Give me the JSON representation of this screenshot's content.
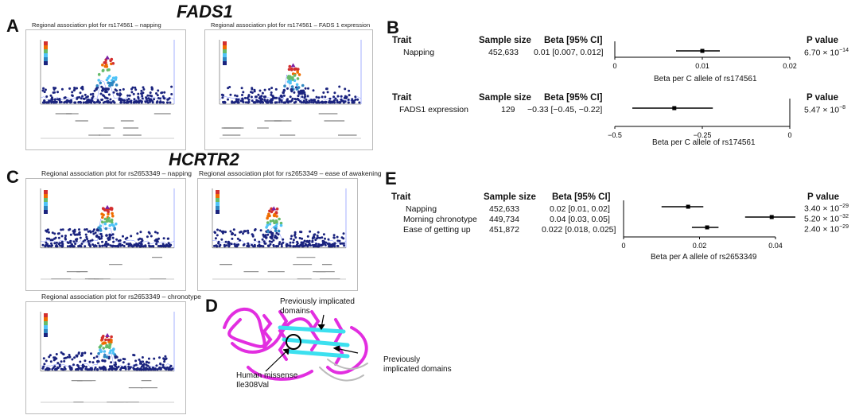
{
  "panels": {
    "A": {
      "letter": "A",
      "gene": "FADS1",
      "plots": [
        {
          "title": "Regional association plot for rs174561 – napping",
          "snp": "rs174561"
        },
        {
          "title": "Regional association plot for rs174561 – FADS 1 expression",
          "snp": "rs174561"
        }
      ]
    },
    "B": {
      "letter": "B",
      "header": {
        "trait": "Trait",
        "sample": "Sample size",
        "beta": "Beta [95% CI]",
        "p": "P value"
      },
      "blocks": [
        {
          "trait": "Napping",
          "sample": "452,633",
          "beta": "0.01 [0.007, 0.012]",
          "p_base": "6.70 × 10",
          "p_exp": "−14",
          "xlabel": "Beta per C allele of rs174561",
          "ticks": [
            "0",
            "0.01",
            "0.02"
          ]
        },
        {
          "trait": "FADS1 expression",
          "sample": "129",
          "beta": "−0.33 [−0.45, −0.22]",
          "p_base": "5.47 × 10",
          "p_exp": "−8",
          "xlabel": "Beta per C allele of rs174561",
          "ticks": [
            "−0.5",
            "−0.25",
            "0"
          ]
        }
      ]
    },
    "C": {
      "letter": "C",
      "gene": "HCRTR2",
      "plots": [
        {
          "title": "Regional association plot for rs2653349 – napping",
          "snp": "rs2653349"
        },
        {
          "title": "Regional association plot for rs2653349 – ease of awakening",
          "snp": "rs2653349"
        },
        {
          "title": "Regional association plot for rs2653349 – chronotype",
          "snp": "rs2653349"
        }
      ]
    },
    "D": {
      "letter": "D",
      "labels": {
        "top": "Previously implicated\ndomains",
        "right": "Previously\nimplicated domains",
        "bottom": "Human missense\nIle308Val"
      }
    },
    "E": {
      "letter": "E",
      "header": {
        "trait": "Trait",
        "sample": "Sample size",
        "beta": "Beta [95% CI]",
        "p": "P value"
      },
      "rows": [
        {
          "trait": "Napping",
          "sample": "452,633",
          "beta": "0.02 [0.01, 0.02]",
          "p_base": "3.40 × 10",
          "p_exp": "−29"
        },
        {
          "trait": "Morning chronotype",
          "sample": "449,734",
          "beta": "0.04 [0.03, 0.05]",
          "p_base": "5.20 × 10",
          "p_exp": "−32"
        },
        {
          "trait": "Ease of getting up",
          "sample": "451,872",
          "beta": "0.022 [0.018, 0.025]",
          "p_base": "2.40 × 10",
          "p_exp": "−29"
        }
      ],
      "xlabel": "Beta per A allele of rs2653349",
      "ticks": [
        "0",
        "0.02",
        "0.04"
      ]
    }
  },
  "chart_data": [
    {
      "type": "forest",
      "panel": "B-top",
      "xlim": [
        0,
        0.02
      ],
      "points": [
        {
          "label": "Napping",
          "beta": 0.01,
          "lo": 0.007,
          "hi": 0.012
        }
      ]
    },
    {
      "type": "forest",
      "panel": "B-bottom",
      "xlim": [
        -0.5,
        0
      ],
      "points": [
        {
          "label": "FADS1 expression",
          "beta": -0.33,
          "lo": -0.45,
          "hi": -0.22
        }
      ]
    },
    {
      "type": "forest",
      "panel": "E",
      "xlim": [
        0,
        0.04
      ],
      "points": [
        {
          "label": "Napping",
          "beta": 0.017,
          "lo": 0.01,
          "hi": 0.021
        },
        {
          "label": "Morning chronotype",
          "beta": 0.039,
          "lo": 0.032,
          "hi": 0.046
        },
        {
          "label": "Ease of getting up",
          "beta": 0.022,
          "lo": 0.018,
          "hi": 0.025
        }
      ]
    }
  ]
}
